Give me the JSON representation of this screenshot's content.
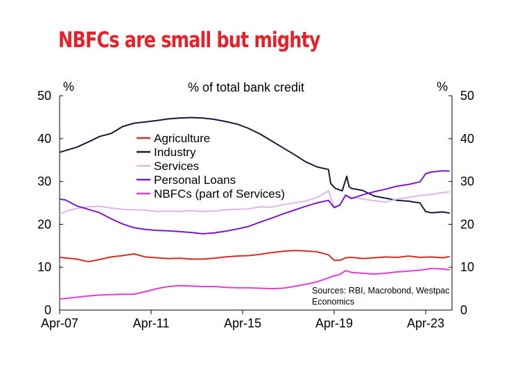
{
  "title": "NBFCs are small but mighty",
  "chart_data": {
    "type": "line",
    "subtitle": "% of total bank credit",
    "left_unit": "%",
    "right_unit": "%",
    "source": [
      "Sources: RBI, Macrobond, Westpac",
      "Economics"
    ],
    "ylim": [
      0,
      50
    ],
    "yticks": [
      0,
      10,
      20,
      30,
      40,
      50
    ],
    "xlim": [
      2007.25,
      2024.4
    ],
    "xticks": [
      {
        "label": "Apr-07",
        "value": 2007.25
      },
      {
        "label": "Apr-11",
        "value": 2011.25
      },
      {
        "label": "Apr-15",
        "value": 2015.25
      },
      {
        "label": "Apr-19",
        "value": 2019.25
      },
      {
        "label": "Apr-23",
        "value": 2023.25
      }
    ],
    "grid": false,
    "legend_position": "top-center",
    "series": [
      {
        "name": "Agriculture",
        "color": "#d42c1f",
        "x": [
          2007.25,
          2008.0,
          2008.5,
          2009.0,
          2009.5,
          2010.0,
          2010.5,
          2011.0,
          2011.5,
          2012.0,
          2012.5,
          2013.0,
          2013.5,
          2014.0,
          2014.5,
          2015.0,
          2015.5,
          2016.0,
          2016.5,
          2017.0,
          2017.5,
          2018.0,
          2018.5,
          2019.0,
          2019.25,
          2019.5,
          2019.75,
          2020.0,
          2020.5,
          2021.0,
          2021.5,
          2022.0,
          2022.5,
          2023.0,
          2023.5,
          2024.0,
          2024.3
        ],
        "y": [
          12.3,
          11.9,
          11.3,
          11.8,
          12.4,
          12.7,
          13.1,
          12.4,
          12.2,
          12.0,
          12.1,
          11.9,
          11.9,
          12.1,
          12.4,
          12.6,
          12.7,
          13.0,
          13.4,
          13.7,
          13.9,
          13.8,
          13.6,
          12.9,
          11.6,
          11.6,
          12.2,
          12.3,
          12.0,
          12.2,
          12.4,
          12.3,
          12.6,
          12.3,
          12.4,
          12.2,
          12.5
        ]
      },
      {
        "name": "Industry",
        "color": "#141938",
        "x": [
          2007.25,
          2007.5,
          2008.0,
          2008.5,
          2009.0,
          2009.5,
          2010.0,
          2010.5,
          2011.0,
          2011.5,
          2012.0,
          2012.5,
          2013.0,
          2013.5,
          2014.0,
          2014.5,
          2015.0,
          2015.5,
          2016.0,
          2016.5,
          2017.0,
          2017.5,
          2018.0,
          2018.5,
          2019.0,
          2019.1,
          2019.3,
          2019.6,
          2019.8,
          2019.9,
          2020.0,
          2020.5,
          2021.0,
          2021.5,
          2022.0,
          2022.5,
          2023.0,
          2023.25,
          2023.5,
          2024.0,
          2024.3
        ],
        "y": [
          36.8,
          37.2,
          38.0,
          39.2,
          40.5,
          41.2,
          42.8,
          43.6,
          43.9,
          44.2,
          44.6,
          44.8,
          44.9,
          44.8,
          44.5,
          44.0,
          43.4,
          42.4,
          41.1,
          39.5,
          37.9,
          36.3,
          34.6,
          33.4,
          32.8,
          29.5,
          28.4,
          27.8,
          31.2,
          28.8,
          28.4,
          27.9,
          26.6,
          26.1,
          25.6,
          25.4,
          25.0,
          23.0,
          22.7,
          22.9,
          22.6
        ]
      },
      {
        "name": "Services",
        "color": "#dcb8e4",
        "x": [
          2007.25,
          2007.5,
          2008.0,
          2008.5,
          2009.0,
          2009.5,
          2010.0,
          2010.5,
          2011.0,
          2011.5,
          2012.0,
          2012.5,
          2013.0,
          2013.5,
          2014.0,
          2014.5,
          2015.0,
          2015.5,
          2016.0,
          2016.5,
          2017.0,
          2017.5,
          2018.0,
          2018.5,
          2019.0,
          2019.25,
          2019.5,
          2019.75,
          2020.0,
          2020.5,
          2021.0,
          2021.5,
          2022.0,
          2022.5,
          2023.0,
          2023.5,
          2024.0,
          2024.3
        ],
        "y": [
          22.3,
          23.0,
          23.7,
          24.1,
          24.2,
          23.8,
          23.5,
          23.4,
          23.3,
          23.0,
          23.1,
          23.0,
          23.2,
          23.0,
          23.1,
          23.4,
          23.5,
          23.6,
          24.1,
          24.0,
          24.6,
          25.0,
          25.4,
          26.3,
          27.8,
          24.1,
          24.4,
          26.8,
          26.3,
          25.9,
          25.5,
          25.2,
          25.9,
          26.3,
          26.7,
          27.0,
          27.4,
          27.6
        ]
      },
      {
        "name": "Personal Loans",
        "color": "#7a17cf",
        "x": [
          2007.25,
          2007.5,
          2008.0,
          2008.5,
          2009.0,
          2009.5,
          2010.0,
          2010.5,
          2011.0,
          2011.5,
          2012.0,
          2012.5,
          2013.0,
          2013.5,
          2014.0,
          2014.5,
          2015.0,
          2015.5,
          2016.0,
          2016.5,
          2017.0,
          2017.5,
          2018.0,
          2018.5,
          2019.0,
          2019.25,
          2019.5,
          2019.75,
          2020.0,
          2020.5,
          2021.0,
          2021.5,
          2022.0,
          2022.5,
          2023.0,
          2023.25,
          2023.5,
          2024.0,
          2024.3
        ],
        "y": [
          25.9,
          25.7,
          24.3,
          23.5,
          22.7,
          21.3,
          20.1,
          19.2,
          18.8,
          18.6,
          18.5,
          18.3,
          18.1,
          17.8,
          18.0,
          18.4,
          18.9,
          19.5,
          20.5,
          21.4,
          22.4,
          23.3,
          24.2,
          25.0,
          25.6,
          23.9,
          24.5,
          26.8,
          26.0,
          26.9,
          27.6,
          28.2,
          28.9,
          29.3,
          29.9,
          31.8,
          32.2,
          32.5,
          32.4
        ]
      },
      {
        "name": "NBFCs (part of Services)",
        "color": "#e33ad9",
        "x": [
          2007.25,
          2007.5,
          2008.0,
          2008.5,
          2009.0,
          2009.5,
          2010.0,
          2010.5,
          2011.0,
          2011.5,
          2012.0,
          2012.5,
          2013.0,
          2013.5,
          2014.0,
          2014.5,
          2015.0,
          2015.5,
          2016.0,
          2016.5,
          2017.0,
          2017.5,
          2018.0,
          2018.5,
          2019.0,
          2019.25,
          2019.5,
          2019.75,
          2020.0,
          2020.5,
          2021.0,
          2021.5,
          2022.0,
          2022.5,
          2023.0,
          2023.5,
          2024.0,
          2024.3
        ],
        "y": [
          2.6,
          2.7,
          3.0,
          3.3,
          3.5,
          3.6,
          3.7,
          3.7,
          4.3,
          5.0,
          5.5,
          5.7,
          5.6,
          5.5,
          5.5,
          5.3,
          5.2,
          5.2,
          5.1,
          5.0,
          5.1,
          5.5,
          6.0,
          6.6,
          7.5,
          8.0,
          8.3,
          9.2,
          8.8,
          8.6,
          8.4,
          8.6,
          8.9,
          9.1,
          9.3,
          9.7,
          9.6,
          9.4
        ]
      }
    ]
  }
}
